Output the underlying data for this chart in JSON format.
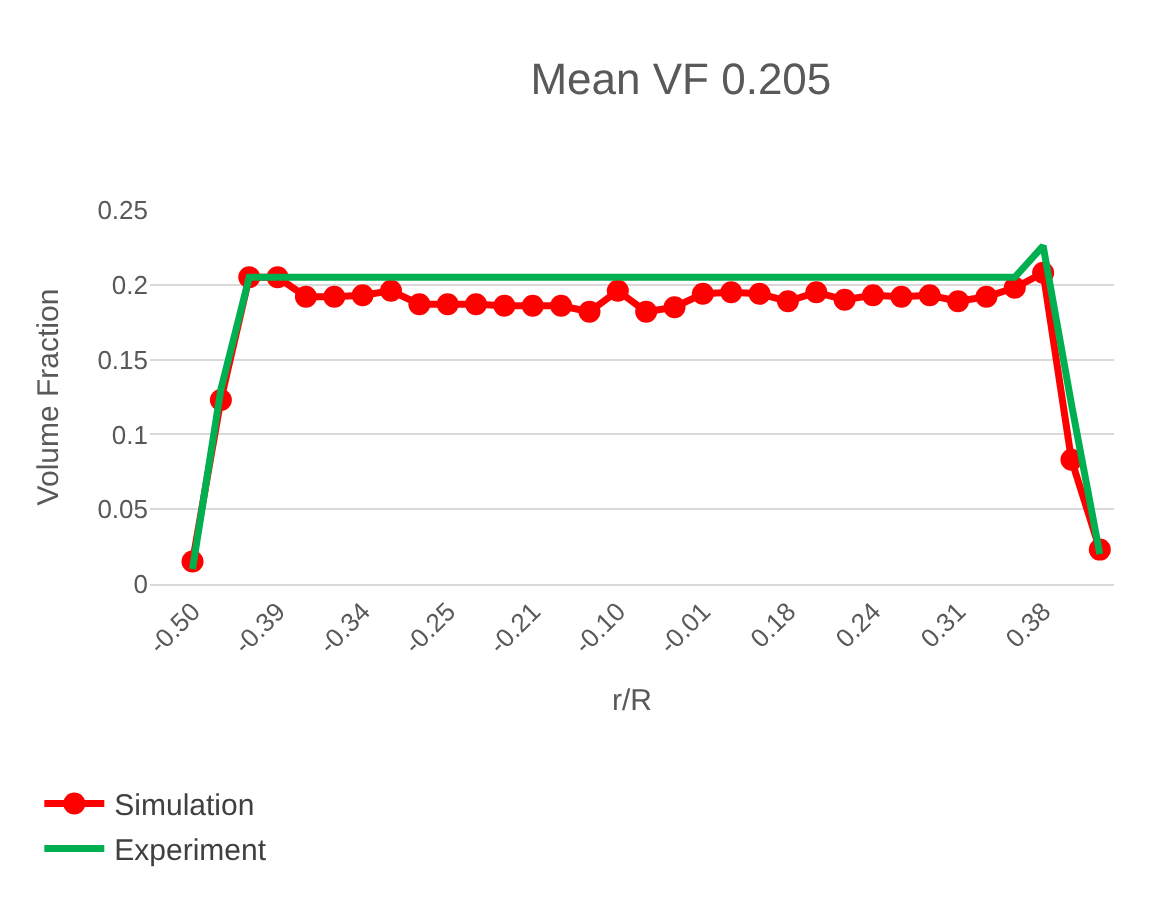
{
  "chart_data": {
    "type": "line",
    "title": "Mean VF 0.205",
    "xlabel": "r/R",
    "ylabel": "Volume Fraction",
    "categories": [
      "-0.50",
      null,
      null,
      "-0.39",
      null,
      null,
      "-0.34",
      null,
      null,
      "-0.25",
      null,
      null,
      "-0.21",
      null,
      null,
      "-0.10",
      null,
      null,
      "-0.01",
      null,
      null,
      "0.18",
      null,
      null,
      "0.24",
      null,
      null,
      "0.31",
      null,
      null,
      "0.38",
      null,
      null
    ],
    "series": [
      {
        "name": "Simulation",
        "color": "#ff0000",
        "marker": "circle",
        "values": [
          0.015,
          0.123,
          0.205,
          0.205,
          0.192,
          0.192,
          0.193,
          0.196,
          0.187,
          0.187,
          0.187,
          0.186,
          0.186,
          0.186,
          0.182,
          0.196,
          0.182,
          0.185,
          0.194,
          0.195,
          0.194,
          0.189,
          0.195,
          0.19,
          0.193,
          0.192,
          0.193,
          0.189,
          0.192,
          0.198,
          0.208,
          0.083,
          0.023
        ]
      },
      {
        "name": "Experiment",
        "color": "#00b050",
        "marker": "none",
        "values": [
          0.01,
          0.13,
          0.205,
          0.205,
          0.205,
          0.205,
          0.205,
          0.205,
          0.205,
          0.205,
          0.205,
          0.205,
          0.205,
          0.205,
          0.205,
          0.205,
          0.205,
          0.205,
          0.205,
          0.205,
          0.205,
          0.205,
          0.205,
          0.205,
          0.205,
          0.205,
          0.205,
          0.205,
          0.205,
          0.205,
          0.226,
          0.12,
          0.02
        ]
      }
    ],
    "ylim": [
      0,
      0.25
    ],
    "yticks": [
      0,
      {
        "value": 0.05,
        "label": "0.05"
      },
      {
        "value": 0.1,
        "label": "0.1"
      },
      {
        "value": 0.15,
        "label": "0.15"
      },
      {
        "value": 0.2,
        "label": "0.2"
      },
      {
        "value": 0.25,
        "label": "0.25"
      }
    ],
    "grid": "y",
    "legend": "bottom left",
    "line_style": "solid"
  }
}
